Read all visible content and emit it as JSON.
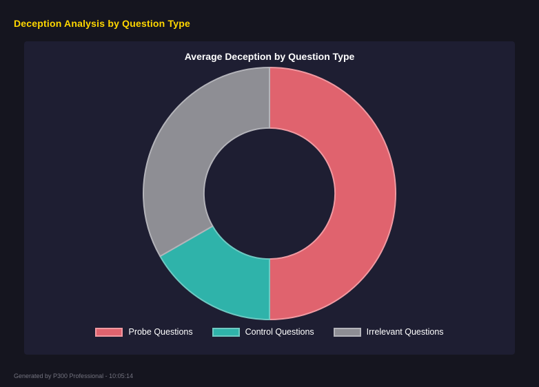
{
  "page": {
    "title": "Deception Analysis by Question Type",
    "footer": "Generated by P300 Professional - 10:05:14"
  },
  "chart_data": {
    "type": "pie",
    "variant": "donut",
    "title": "Average Deception by Question Type",
    "labels": [
      "Probe Questions",
      "Control Questions",
      "Irrelevant Questions"
    ],
    "values": [
      50,
      16.7,
      33.3
    ],
    "unit": "percent_of_circle",
    "colors": [
      "#e0636e",
      "#2fb3aa",
      "#8e8e94"
    ],
    "border_colors": [
      "#f09aa2",
      "#6fc9c2",
      "#b4b4ba"
    ],
    "legend_position": "bottom",
    "start_angle_deg": 0,
    "direction": "clockwise",
    "inner_radius_ratio": 0.52,
    "background": "#1e1e32"
  },
  "theme": {
    "page_background": "#15151f",
    "panel_background": "#1e1e32",
    "title_accent": "#ffd700",
    "text_color": "#ffffff",
    "muted_color": "#73737f"
  }
}
